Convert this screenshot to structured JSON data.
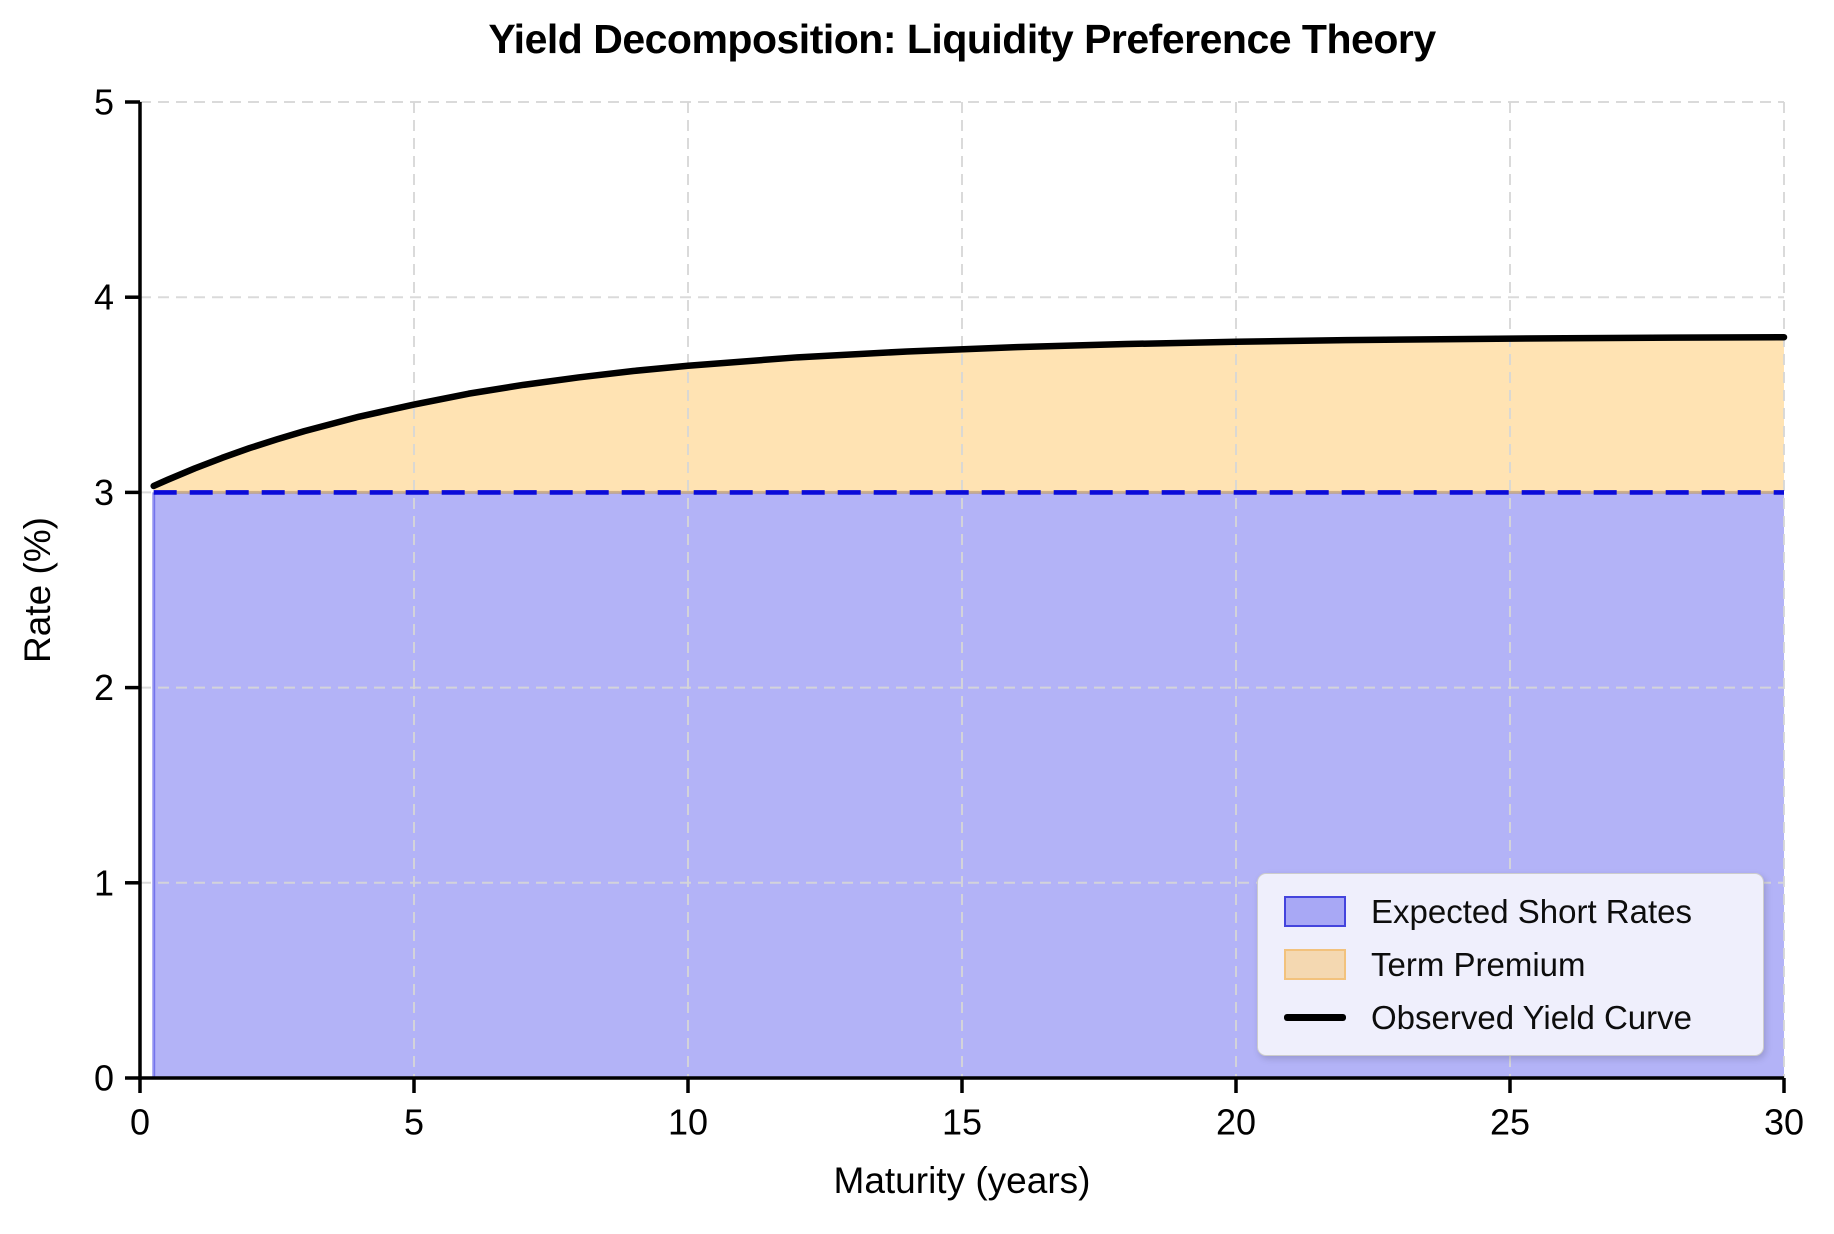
{
  "chart_data": {
    "type": "area",
    "title": "Yield Decomposition: Liquidity Preference Theory",
    "xlabel": "Maturity (years)",
    "ylabel": "Rate (%)",
    "xlim": [
      0,
      30
    ],
    "ylim": [
      0,
      5
    ],
    "xticks": [
      0,
      5,
      10,
      15,
      20,
      25,
      30
    ],
    "yticks": [
      0,
      1,
      2,
      3,
      4,
      5
    ],
    "grid": true,
    "grid_style": "dashed",
    "legend_position": "lower right",
    "x": [
      0.25,
      0.5,
      1,
      1.5,
      2,
      2.5,
      3,
      4,
      5,
      6,
      7,
      8,
      9,
      10,
      12,
      14,
      16,
      18,
      20,
      22,
      24,
      26,
      28,
      30
    ],
    "series": [
      {
        "name": "Expected Short Rates",
        "kind": "area",
        "edge_style": "dashed",
        "values": [
          3.0,
          3.0,
          3.0,
          3.0,
          3.0,
          3.0,
          3.0,
          3.0,
          3.0,
          3.0,
          3.0,
          3.0,
          3.0,
          3.0,
          3.0,
          3.0,
          3.0,
          3.0,
          3.0,
          3.0,
          3.0,
          3.0,
          3.0,
          3.0
        ]
      },
      {
        "name": "Term Premium",
        "kind": "area",
        "stacked_on_previous": true,
        "values": [
          0.033,
          0.064,
          0.123,
          0.177,
          0.227,
          0.272,
          0.314,
          0.388,
          0.45,
          0.506,
          0.551,
          0.589,
          0.622,
          0.649,
          0.692,
          0.722,
          0.744,
          0.76,
          0.772,
          0.78,
          0.785,
          0.79,
          0.793,
          0.795
        ]
      },
      {
        "name": "Observed Yield Curve",
        "kind": "line",
        "values": [
          3.033,
          3.064,
          3.123,
          3.177,
          3.227,
          3.272,
          3.314,
          3.388,
          3.45,
          3.506,
          3.551,
          3.589,
          3.622,
          3.649,
          3.692,
          3.722,
          3.744,
          3.76,
          3.772,
          3.78,
          3.785,
          3.79,
          3.793,
          3.795
        ]
      }
    ]
  },
  "colors": {
    "expected_fill": "rgba(25,25,230,0.33)",
    "expected_dashed_edge": "#0a0ad9",
    "expected_left_edge": "rgba(40,40,225,0.45)",
    "premium_fill": "rgba(255,166,10,0.31)",
    "premium_edge": "rgba(184,140,88,0.55)",
    "observed_line": "#000000",
    "grid": "rgba(214,214,214,0.9)",
    "axis": "#000000",
    "tick_label": "#000000",
    "legend_bg": "#efeffc",
    "legend_border": "#cccccc",
    "expected_swatch_border": "#4444dd",
    "premium_swatch_border": "#f2c27d"
  }
}
